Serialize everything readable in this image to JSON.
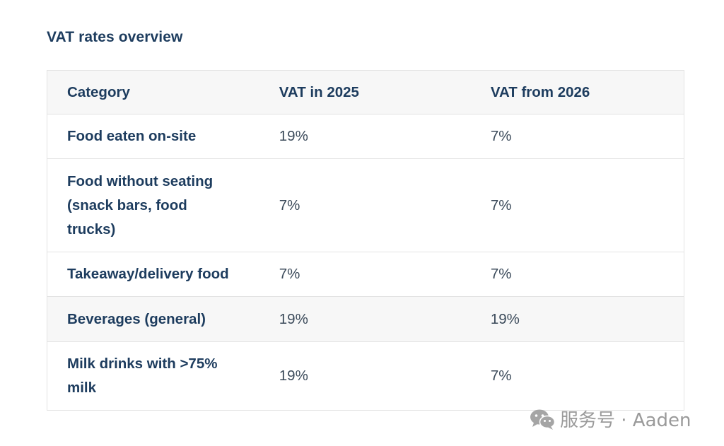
{
  "heading": "VAT rates overview",
  "table": {
    "headers": [
      "Category",
      "VAT in 2025",
      "VAT from 2026"
    ],
    "rows": [
      {
        "category": "Food eaten on-site",
        "vat_2025": "19%",
        "vat_2026": "7%"
      },
      {
        "category": "Food without seating (snack bars, food trucks)",
        "vat_2025": "7%",
        "vat_2026": "7%"
      },
      {
        "category": "Takeaway/delivery food",
        "vat_2025": "7%",
        "vat_2026": "7%"
      },
      {
        "category": "Beverages (general)",
        "vat_2025": "19%",
        "vat_2026": "19%"
      },
      {
        "category": "Milk drinks with >75% milk",
        "vat_2025": "19%",
        "vat_2026": "7%"
      }
    ]
  },
  "watermark": {
    "text": "服务号 · Aaden",
    "icon": "wechat-icon"
  }
}
